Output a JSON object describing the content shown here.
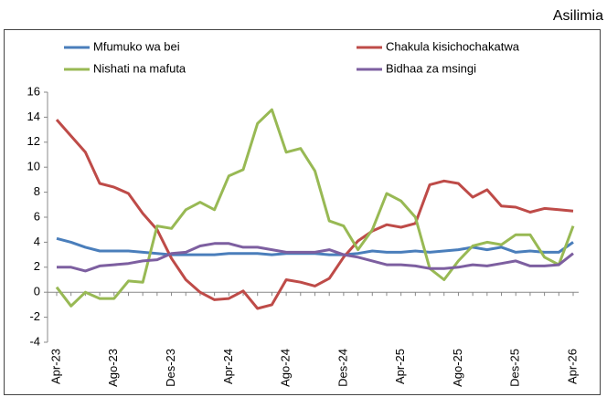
{
  "chart_data": {
    "type": "line",
    "title": "Asilimia",
    "categories": [
      "Apr-23",
      null,
      null,
      null,
      "Ago-23",
      null,
      null,
      null,
      "Des-23",
      null,
      null,
      null,
      "Apr-24",
      null,
      null,
      null,
      "Ago-24",
      null,
      null,
      null,
      "Des-24",
      null,
      null,
      null,
      "Apr-25",
      null,
      null,
      null,
      "Ago-25",
      null,
      null,
      null,
      "Des-25",
      null,
      null,
      null,
      "Apr-26"
    ],
    "series": [
      {
        "name": "Mfumuko wa bei",
        "color": "#4a7ebb",
        "values": [
          4.3,
          4.0,
          3.6,
          3.3,
          3.3,
          3.3,
          3.2,
          3.1,
          3.0,
          3.0,
          3.0,
          3.0,
          3.1,
          3.1,
          3.1,
          3.0,
          3.1,
          3.1,
          3.1,
          3.0,
          3.0,
          3.1,
          3.3,
          3.2,
          3.2,
          3.3,
          3.2,
          3.3,
          3.4,
          3.6,
          3.4,
          3.6,
          3.2,
          3.3,
          3.2,
          3.2,
          4.0
        ]
      },
      {
        "name": "Chakula kisichochakatwa",
        "color": "#be4b48",
        "values": [
          13.8,
          12.5,
          11.2,
          8.7,
          8.4,
          7.9,
          6.3,
          5.0,
          2.7,
          1.0,
          0.0,
          -0.6,
          -0.5,
          0.1,
          -1.3,
          -1.0,
          1.0,
          0.8,
          0.5,
          1.1,
          2.8,
          4.1,
          4.9,
          5.4,
          5.2,
          5.5,
          8.6,
          8.9,
          8.7,
          7.6,
          8.2,
          6.9,
          6.8,
          6.4,
          6.7,
          6.6,
          6.5
        ]
      },
      {
        "name": "Nishati na mafuta",
        "color": "#98b954",
        "values": [
          0.4,
          -1.1,
          0.0,
          -0.5,
          -0.5,
          0.9,
          0.8,
          5.3,
          5.1,
          6.6,
          7.2,
          6.6,
          9.3,
          9.8,
          13.5,
          14.6,
          11.2,
          11.5,
          9.7,
          5.7,
          5.3,
          3.4,
          5.0,
          7.9,
          7.3,
          6.0,
          1.9,
          1.0,
          2.5,
          3.7,
          4.0,
          3.8,
          4.6,
          4.6,
          2.8,
          2.2,
          5.3
        ]
      },
      {
        "name": "Bidhaa za msingi",
        "color": "#7d5fa0",
        "values": [
          2.0,
          2.0,
          1.7,
          2.1,
          2.2,
          2.3,
          2.5,
          2.6,
          3.1,
          3.2,
          3.7,
          3.9,
          3.9,
          3.6,
          3.6,
          3.4,
          3.2,
          3.2,
          3.2,
          3.4,
          3.0,
          2.8,
          2.5,
          2.2,
          2.2,
          2.1,
          1.9,
          1.9,
          2.0,
          2.2,
          2.1,
          2.3,
          2.5,
          2.1,
          2.1,
          2.2,
          3.1
        ]
      }
    ],
    "ylim": [
      -4,
      16
    ],
    "yticks": [
      -4,
      -2,
      0,
      2,
      4,
      6,
      8,
      10,
      12,
      14,
      16
    ]
  }
}
